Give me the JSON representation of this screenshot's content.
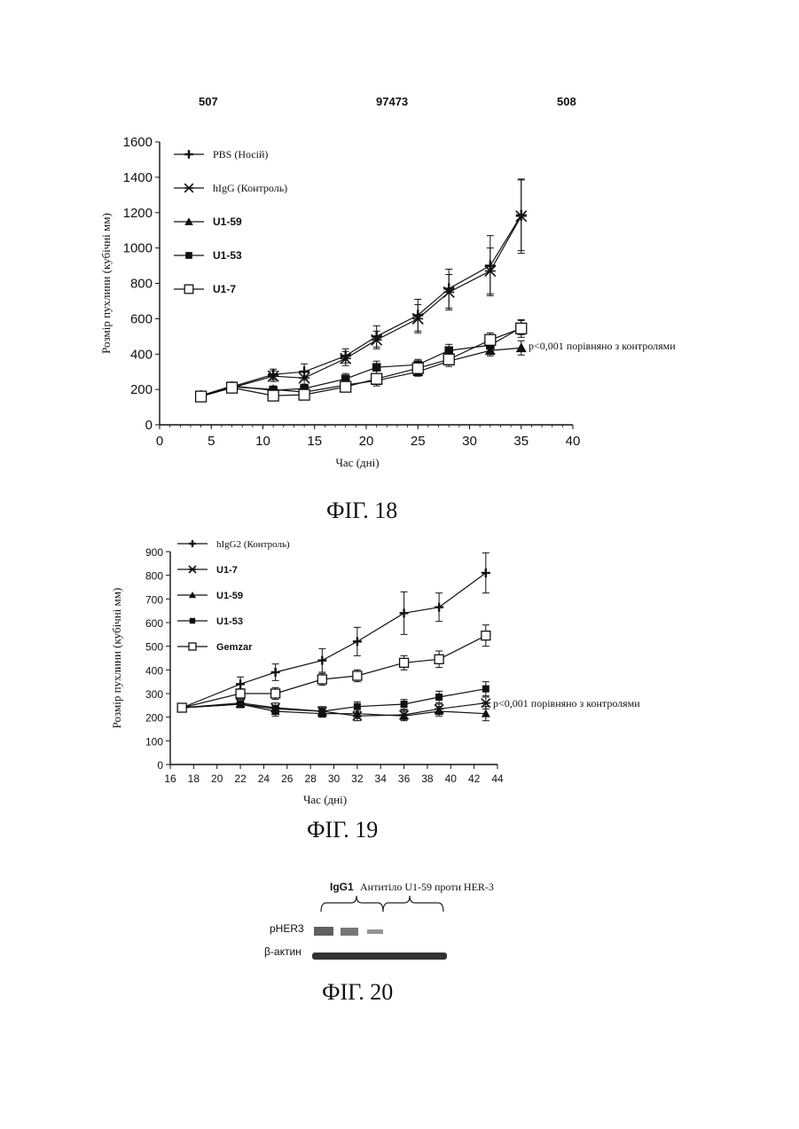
{
  "header": {
    "left": "507",
    "center": "97473",
    "right": "508"
  },
  "fig18": {
    "caption": "ФІГ. 18",
    "annotation": "p<0,001 порівняно з контролями",
    "chart_data": {
      "type": "line",
      "xlabel": "Час (дні)",
      "ylabel": "Розмір пухлини (кубічні мм)",
      "xlim": [
        0,
        40
      ],
      "ylim": [
        0,
        1600
      ],
      "x_ticks": [
        0,
        5,
        10,
        15,
        20,
        25,
        30,
        35,
        40
      ],
      "y_ticks": [
        0,
        200,
        400,
        600,
        800,
        1000,
        1200,
        1400,
        1600
      ],
      "legend_position": "top-left",
      "series": [
        {
          "name": "PBS (Носій)",
          "marker": "cross",
          "x": [
            4,
            7,
            11,
            14,
            18,
            21,
            25,
            28,
            32,
            35
          ],
          "y": [
            165,
            215,
            285,
            300,
            390,
            500,
            620,
            770,
            900,
            1185
          ],
          "err": [
            25,
            20,
            30,
            45,
            40,
            60,
            90,
            110,
            170,
            200
          ]
        },
        {
          "name": "hIgG (Контроль)",
          "marker": "star",
          "x": [
            4,
            7,
            11,
            14,
            18,
            21,
            25,
            28,
            32,
            35
          ],
          "y": [
            160,
            210,
            275,
            265,
            375,
            480,
            600,
            750,
            870,
            1180
          ],
          "err": [
            25,
            20,
            30,
            40,
            40,
            50,
            80,
            100,
            130,
            210
          ]
        },
        {
          "name": "U1-59",
          "marker": "triangle",
          "x": [
            4,
            7,
            11,
            14,
            18,
            21,
            25,
            28,
            32,
            35
          ],
          "y": [
            160,
            215,
            200,
            185,
            225,
            250,
            300,
            360,
            420,
            435
          ],
          "err": [
            20,
            15,
            20,
            25,
            25,
            30,
            25,
            30,
            30,
            40
          ]
        },
        {
          "name": "U1-53",
          "marker": "square-filled",
          "x": [
            4,
            7,
            11,
            14,
            18,
            21,
            25,
            28,
            32,
            35
          ],
          "y": [
            165,
            220,
            195,
            205,
            260,
            325,
            340,
            420,
            450,
            550
          ],
          "err": [
            20,
            15,
            20,
            25,
            30,
            35,
            30,
            35,
            35,
            40
          ]
        },
        {
          "name": "U1-7",
          "marker": "square-open",
          "x": [
            4,
            7,
            11,
            14,
            18,
            21,
            25,
            28,
            32,
            35
          ],
          "y": [
            160,
            210,
            165,
            170,
            215,
            260,
            320,
            370,
            480,
            545
          ],
          "err": [
            20,
            15,
            20,
            25,
            25,
            30,
            30,
            30,
            40,
            50
          ]
        }
      ]
    }
  },
  "fig19": {
    "caption": "ФІГ. 19",
    "annotation": "p<0,001 порівняно з контролями",
    "chart_data": {
      "type": "line",
      "xlabel": "Час (дні)",
      "ylabel": "Розмір пухлини (кубічні мм)",
      "xlim": [
        16,
        44
      ],
      "ylim": [
        0,
        900
      ],
      "x_ticks": [
        16,
        18,
        20,
        22,
        24,
        26,
        28,
        30,
        32,
        34,
        36,
        38,
        40,
        42,
        44
      ],
      "y_ticks": [
        0,
        100,
        200,
        300,
        400,
        500,
        600,
        700,
        800,
        900
      ],
      "legend_position": "top-left",
      "series": [
        {
          "name": "hIgG2 (Контроль)",
          "marker": "cross",
          "x": [
            17,
            22,
            25,
            29,
            32,
            36,
            39,
            43
          ],
          "y": [
            240,
            340,
            390,
            440,
            520,
            640,
            665,
            810
          ],
          "err": [
            10,
            30,
            35,
            50,
            60,
            90,
            60,
            85
          ]
        },
        {
          "name": "U1-7",
          "marker": "star",
          "x": [
            17,
            22,
            25,
            29,
            32,
            36,
            39,
            43
          ],
          "y": [
            240,
            260,
            240,
            225,
            205,
            210,
            235,
            260
          ],
          "err": [
            10,
            15,
            20,
            20,
            20,
            20,
            20,
            25
          ]
        },
        {
          "name": "U1-59",
          "marker": "triangle",
          "x": [
            17,
            22,
            25,
            29,
            32,
            36,
            39,
            43
          ],
          "y": [
            240,
            255,
            225,
            215,
            215,
            205,
            225,
            215
          ],
          "err": [
            10,
            15,
            20,
            15,
            20,
            20,
            20,
            30
          ]
        },
        {
          "name": "U1-53",
          "marker": "square-filled",
          "x": [
            17,
            22,
            25,
            29,
            32,
            36,
            39,
            43
          ],
          "y": [
            240,
            255,
            235,
            225,
            245,
            255,
            285,
            320
          ],
          "err": [
            10,
            15,
            15,
            15,
            20,
            20,
            25,
            30
          ]
        },
        {
          "name": "Gemzar",
          "marker": "square-open",
          "x": [
            17,
            22,
            25,
            29,
            32,
            36,
            39,
            43
          ],
          "y": [
            240,
            300,
            300,
            360,
            375,
            430,
            445,
            545
          ],
          "err": [
            10,
            20,
            25,
            25,
            25,
            30,
            35,
            45
          ]
        }
      ]
    }
  },
  "fig20": {
    "caption": "ФІГ. 20",
    "group_igg1": "IgG1",
    "group_antibody": "Антитіло U1-59 проти HER-3",
    "row_pher3": "pHER3",
    "row_actin": "β-актин"
  }
}
